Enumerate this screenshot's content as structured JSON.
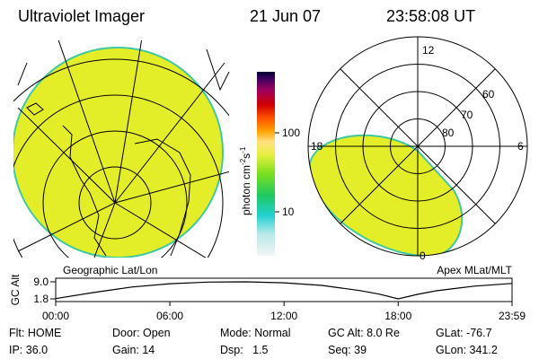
{
  "header": {
    "title": "Ultraviolet Imager",
    "date": "21 Jun 07",
    "time": "23:58:08 UT"
  },
  "colorbar": {
    "label": "photon cm",
    "exp1": "-2",
    "unit2": "s",
    "exp2": "-1",
    "ticks": [
      "100",
      "10"
    ]
  },
  "maps": {
    "geographic_label": "Geographic Lat/Lon",
    "magnetic_label": "Apex MLat/MLT",
    "mlt_labels": [
      "12",
      "6",
      "0",
      "18"
    ],
    "mlat_labels": [
      "60",
      "70",
      "80"
    ]
  },
  "altitude_plot": {
    "type": "line",
    "ylabel": "GC Alt",
    "x": [
      0,
      2,
      4,
      6,
      8,
      10,
      12,
      14,
      16,
      17,
      18,
      19,
      20,
      22,
      23.983
    ],
    "values": [
      1.9,
      4.5,
      6.8,
      8.2,
      8.9,
      9.0,
      8.6,
      7.5,
      5.3,
      3.8,
      1.8,
      3.7,
      5.2,
      7.2,
      8.3
    ],
    "ylim": [
      1.8,
      9.0
    ],
    "yticks": [
      {
        "value": 9.0,
        "label": "9.0"
      },
      1.8
    ],
    "xlim": [
      0,
      23.983
    ],
    "xticks": [
      {
        "value": 0,
        "label": "00:00"
      },
      {
        "value": 6,
        "label": "06:00"
      },
      {
        "value": 12,
        "label": "12:00"
      },
      {
        "value": 18,
        "label": "18:00"
      },
      {
        "value": 23.983,
        "label": "23:59"
      }
    ]
  },
  "status": {
    "rows": [
      [
        "Flt: HOME",
        "Door: Open",
        "Mode: Normal",
        "GC Alt: 8.0 Re",
        "GLat: -76.7"
      ],
      [
        "IP: 36.0",
        "Gain: 14",
        "Dsp:   1.5",
        "Seq: 39",
        "GLon: 341.2"
      ]
    ]
  }
}
